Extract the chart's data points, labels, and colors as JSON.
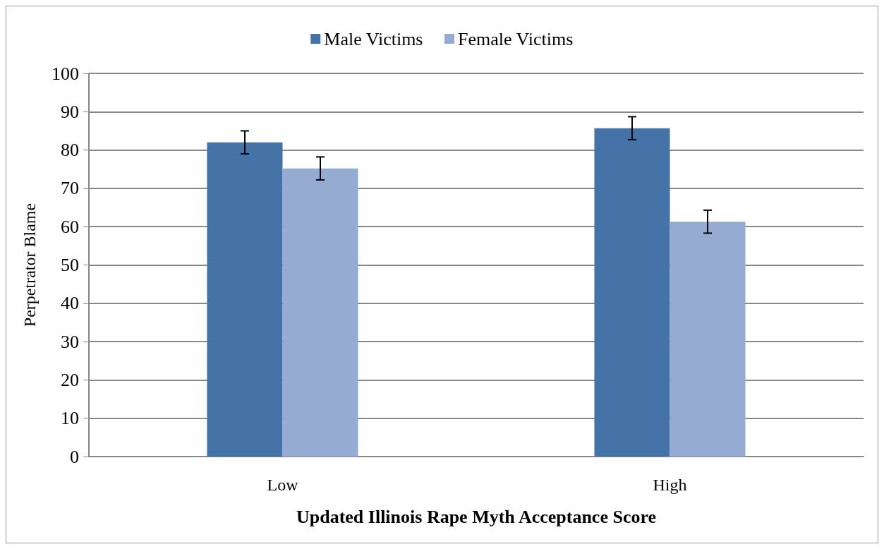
{
  "chart_data": {
    "type": "bar",
    "xlabel": "Updated Illinois Rape Myth Acceptance Score",
    "ylabel": "Perpetrator Blame",
    "categories": [
      "Low",
      "High"
    ],
    "series": [
      {
        "name": "Male Victims",
        "color": "#4573a7",
        "values": [
          82.0,
          85.7
        ],
        "errors": [
          3,
          3
        ]
      },
      {
        "name": "Female Victims",
        "color": "#95abd2",
        "values": [
          75.2,
          61.3
        ],
        "errors": [
          3,
          3
        ]
      }
    ],
    "ylim": [
      0,
      100
    ],
    "yticks": [
      0,
      10,
      20,
      30,
      40,
      50,
      60,
      70,
      80,
      90,
      100
    ],
    "grid": "y",
    "legend": "top"
  }
}
